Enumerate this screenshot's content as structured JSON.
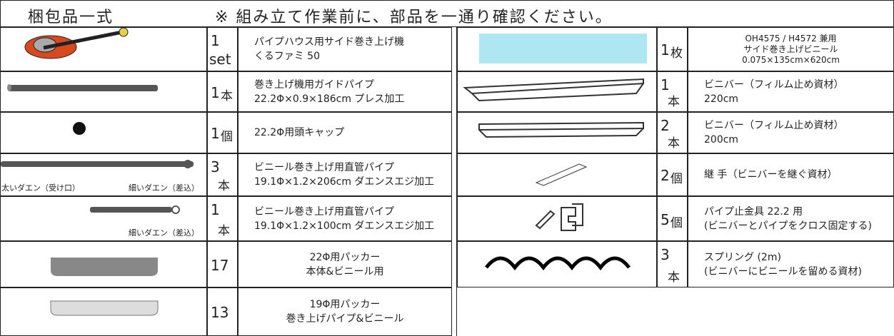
{
  "header": {
    "title": "梱包品一式",
    "note": "※ 組み立て作業前に、部品を一通り確認ください。"
  },
  "left_items": [
    {
      "qty": "1",
      "unit": "set",
      "stacked": true,
      "lines": [
        "パイプハウス用サイド巻き上げ機",
        "くるファミ 50"
      ],
      "align": "left"
    },
    {
      "qty": "1",
      "unit": "本",
      "stacked": false,
      "lines": [
        "巻き上げ機用ガイドパイプ",
        "22.2Φ×0.9×186cm プレス加工"
      ],
      "align": "left"
    },
    {
      "qty": "1",
      "unit": "個",
      "stacked": false,
      "lines": [
        "22.2Φ用頭キャップ"
      ],
      "align": "left"
    },
    {
      "qty": "3",
      "unit": "本",
      "stacked": true,
      "lines": [
        "ビニール巻き上げ用直管パイプ",
        "19.1Φ×1.2×206cm ダエンスエジ加工"
      ],
      "align": "left",
      "image_labels": [
        "太いダエン（受け口）",
        "細いダエン（差込）"
      ]
    },
    {
      "qty": "1",
      "unit": "本",
      "stacked": true,
      "lines": [
        "ビニール巻き上げ用直管パイプ",
        "19.1Φ×1.2×100cm ダエンスエジ加工"
      ],
      "align": "left",
      "image_labels": [
        "細いダエン（差込）"
      ]
    },
    {
      "qty": "17",
      "stacked": false,
      "lines": [
        "22Φ用パッカー",
        "本体&ビニール用"
      ],
      "align": "center"
    },
    {
      "qty": "13",
      "stacked": false,
      "lines": [
        "19Φ用パッカー",
        "巻き上げパイプ&ビニール"
      ],
      "align": "center"
    }
  ],
  "right_items": [
    {
      "qty": "1",
      "unit": "枚",
      "stacked": false,
      "lines": [
        "OH4575 / H4572 兼用",
        "サイド巻き上げビニール",
        "0.075×135cm×620cm"
      ],
      "align": "center"
    },
    {
      "qty": "1",
      "unit": "本",
      "stacked": true,
      "lines": [
        "ビニバー（フィルム止め資材）",
        "220cm"
      ],
      "align": "left"
    },
    {
      "qty": "2",
      "unit": "本",
      "stacked": true,
      "lines": [
        "ビニバー（フィルム止め資材）",
        "200cm"
      ],
      "align": "left"
    },
    {
      "qty": "2",
      "unit": "個",
      "stacked": false,
      "lines": [
        "継 手（ビニバーを継ぐ資材）"
      ],
      "align": "left"
    },
    {
      "qty": "5",
      "unit": "個",
      "stacked": false,
      "lines": [
        "パイプ止金具 22.2 用",
        "(ビニバーとパイプをクロス固定する)"
      ],
      "align": "left"
    },
    {
      "qty": "3",
      "unit": "本",
      "stacked": true,
      "lines": [
        "スプリング (2m)",
        "(ビニバーにビニールを留める資材)"
      ],
      "align": "left"
    }
  ]
}
